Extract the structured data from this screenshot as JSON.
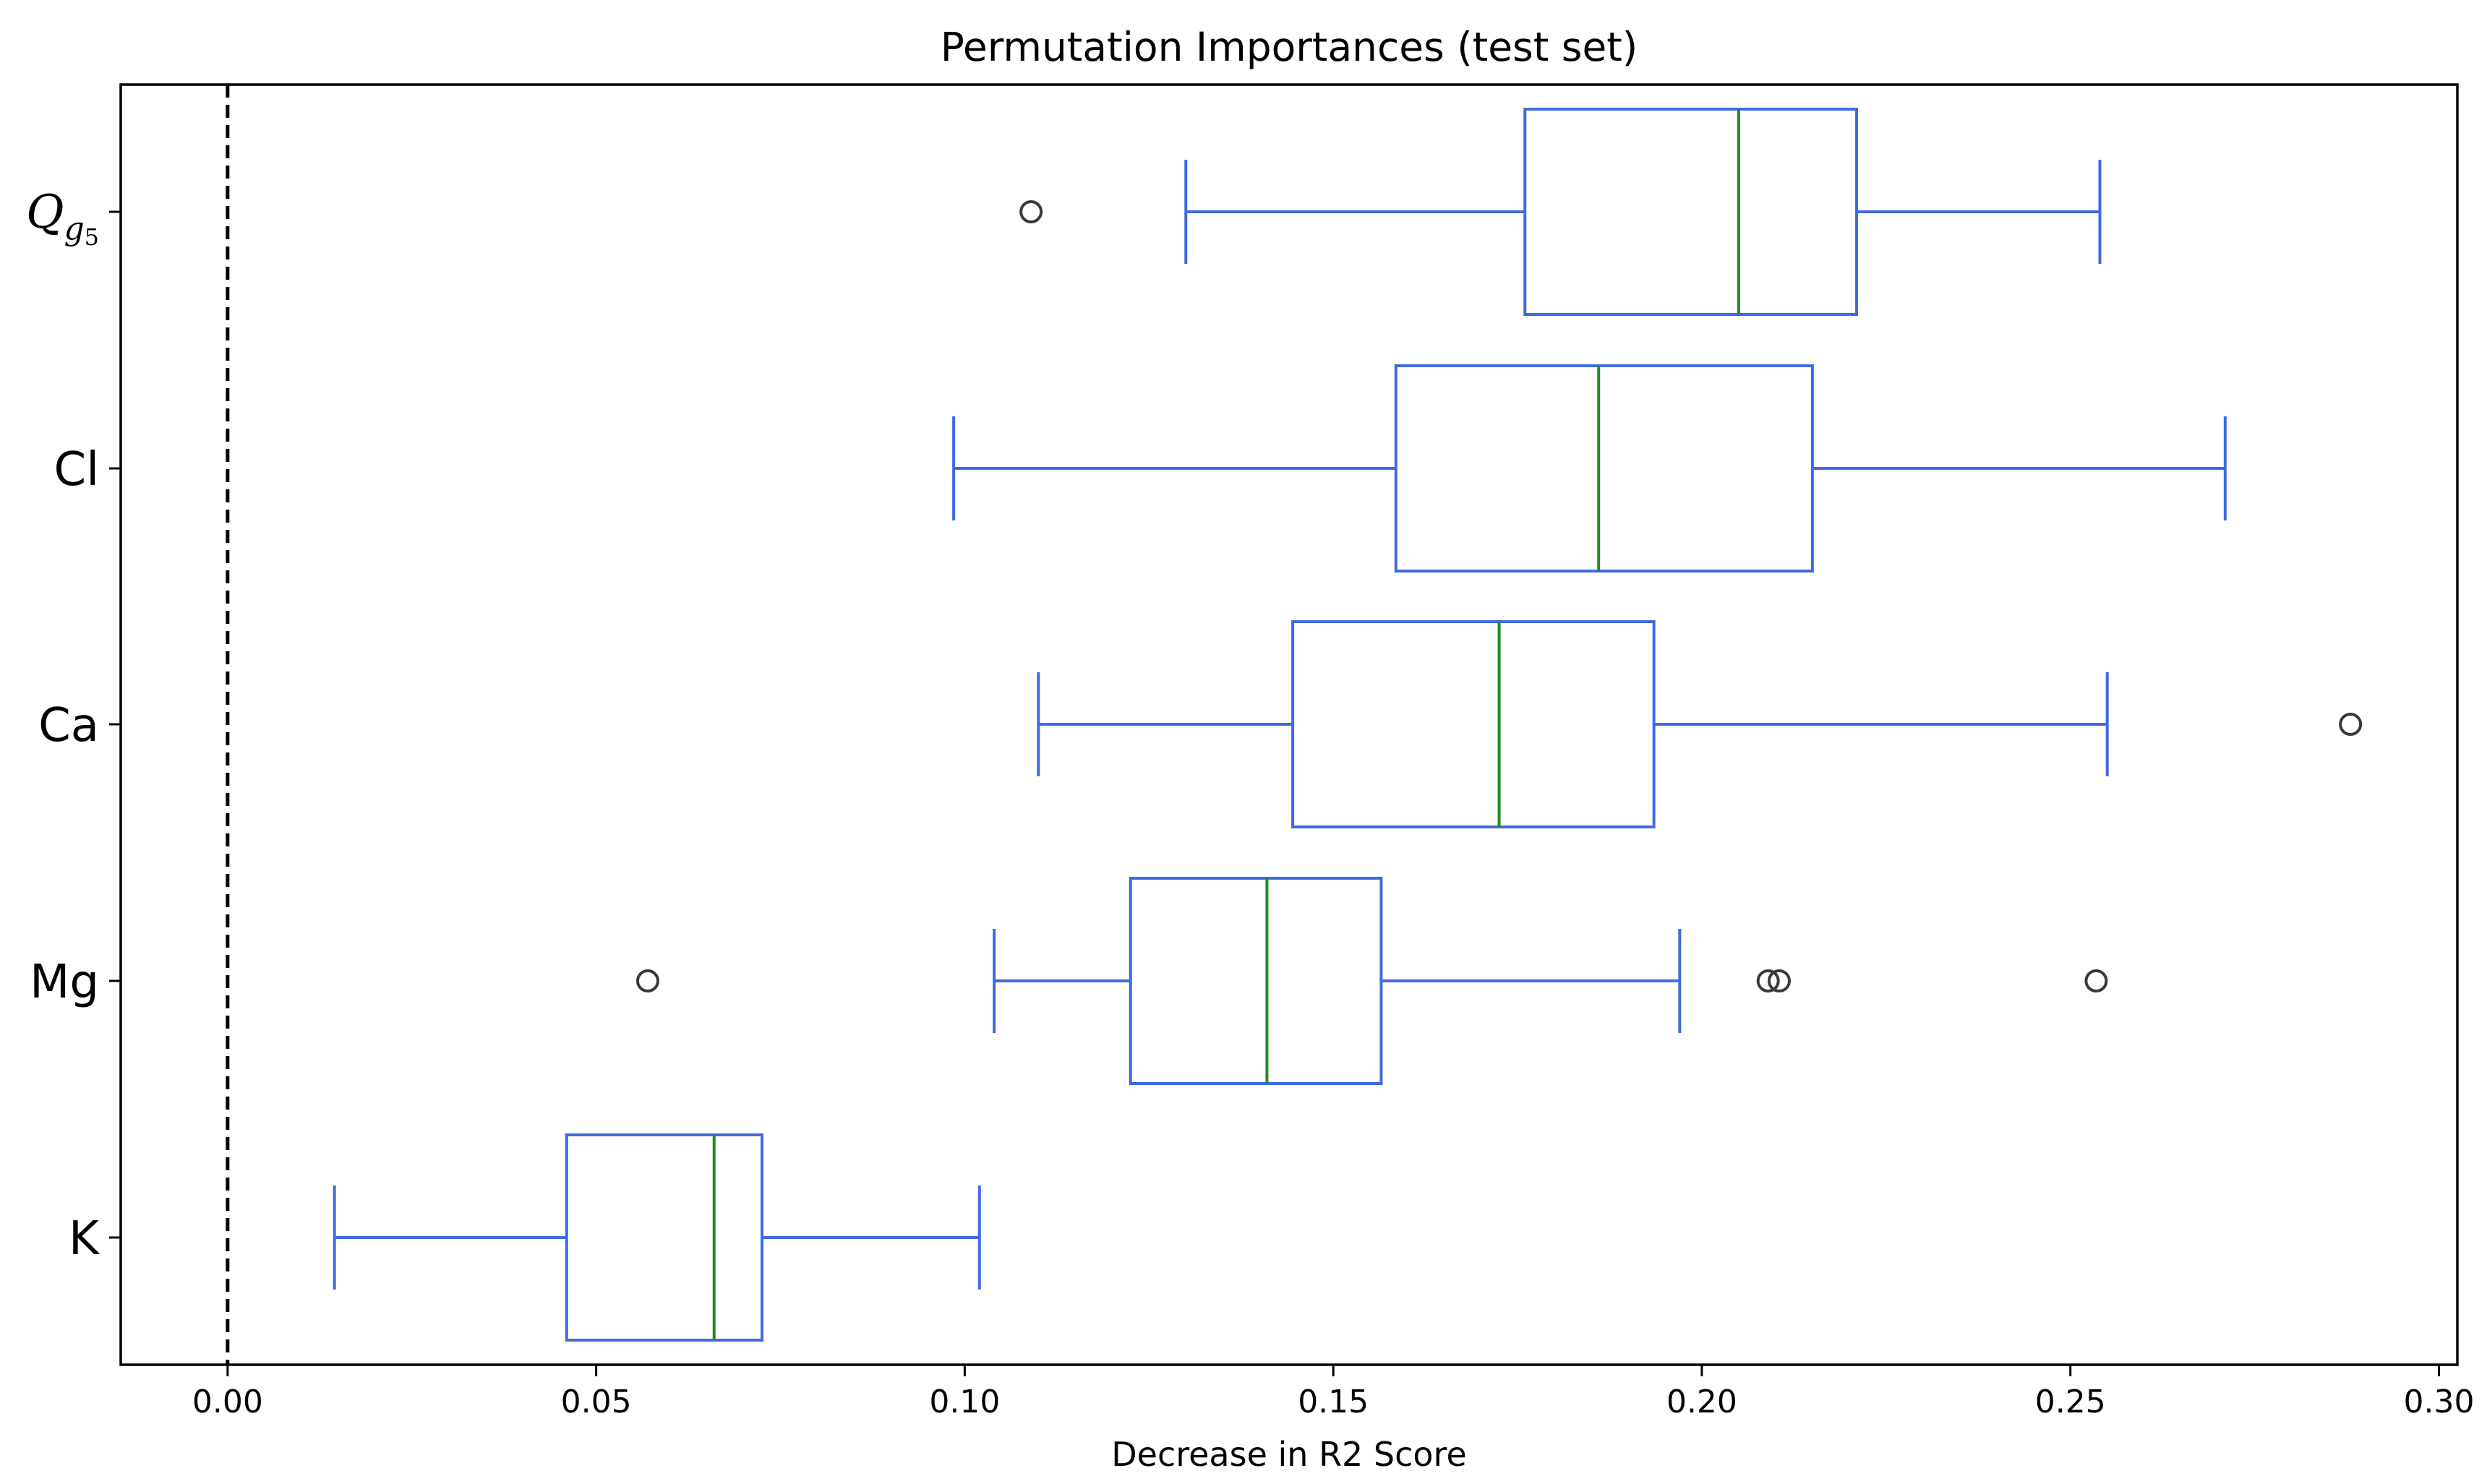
{
  "chart_data": {
    "type": "boxplot",
    "orientation": "horizontal",
    "title": "Permutation Importances (test set)",
    "xlabel": "Decrease in R2 Score",
    "ylabel": "",
    "xlim": [
      -0.0145,
      0.3025
    ],
    "xticks": [
      0.0,
      0.05,
      0.1,
      0.15,
      0.2,
      0.25,
      0.3
    ],
    "xtick_labels": [
      "0.00",
      "0.05",
      "0.10",
      "0.15",
      "0.20",
      "0.25",
      "0.30"
    ],
    "reference_line": {
      "x": 0.0,
      "style": "dashed",
      "color": "#000000"
    },
    "box_color": "#4169e1",
    "median_color": "#228b22",
    "flier_color": "#3a3a3a",
    "categories": [
      "Q_g5",
      "Cl",
      "Ca",
      "Mg",
      "K"
    ],
    "boxes": [
      {
        "label": "Q",
        "label_sub": "g",
        "label_subsub": "5",
        "whisker_low": 0.13,
        "q1": 0.176,
        "median": 0.205,
        "q3": 0.221,
        "whisker_high": 0.254,
        "fliers": [
          0.109
        ]
      },
      {
        "label": "Cl",
        "whisker_low": 0.0985,
        "q1": 0.1585,
        "median": 0.186,
        "q3": 0.215,
        "whisker_high": 0.271,
        "fliers": []
      },
      {
        "label": "Ca",
        "whisker_low": 0.11,
        "q1": 0.1445,
        "median": 0.1725,
        "q3": 0.1935,
        "whisker_high": 0.255,
        "fliers": [
          0.288
        ]
      },
      {
        "label": "Mg",
        "whisker_low": 0.104,
        "q1": 0.1225,
        "median": 0.141,
        "q3": 0.1565,
        "whisker_high": 0.197,
        "fliers": [
          0.057,
          0.209,
          0.2105,
          0.2535
        ]
      },
      {
        "label": "K",
        "whisker_low": 0.0145,
        "q1": 0.046,
        "median": 0.066,
        "q3": 0.0725,
        "whisker_high": 0.102,
        "fliers": []
      }
    ]
  }
}
